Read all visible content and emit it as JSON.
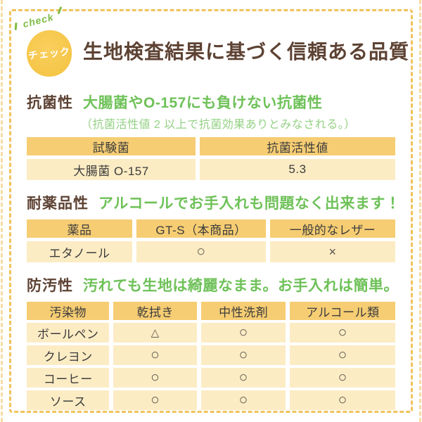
{
  "header": {
    "badge": {
      "check_label": "check",
      "circle_label": "チェック"
    },
    "title": "生地検査結果に基づく信頼ある品質"
  },
  "sections": [
    {
      "label": "抗菌性",
      "headline": "大腸菌やO-157にも負けない抗菌性",
      "note": "（抗菌活性値 2 以上で抗菌効果ありとみなされる。）",
      "table": {
        "headers": [
          "試験菌",
          "抗菌活性値"
        ],
        "rows": [
          [
            "大腸菌 O-157",
            "5.3"
          ]
        ]
      }
    },
    {
      "label": "耐薬品性",
      "headline": "アルコールでお手入れも問題なく出来ます！",
      "table": {
        "headers": [
          "薬品",
          "GT-S（本商品）",
          "一般的なレザー"
        ],
        "rows": [
          [
            "エタノール",
            "○",
            "×"
          ]
        ]
      }
    },
    {
      "label": "防汚性",
      "headline": "汚れても生地は綺麗なまま。お手入れは簡単。",
      "table": {
        "headers": [
          "汚染物",
          "乾拭き",
          "中性洗剤",
          "アルコール類"
        ],
        "rows": [
          [
            "ボールペン",
            "△",
            "○",
            "○"
          ],
          [
            "クレヨン",
            "○",
            "○",
            "○"
          ],
          [
            "コーヒー",
            "○",
            "○",
            "○"
          ],
          [
            "ソース",
            "○",
            "○",
            "○"
          ]
        ]
      }
    }
  ],
  "colors": {
    "border_dash": "#f0c35c",
    "badge_circle": "#f6c648",
    "badge_text": "#ffffff",
    "check_green": "#7fbc45",
    "title_brown": "#5d4233",
    "headline_green": "#6ec158",
    "note_green": "#93d184",
    "table_header_bg": "#f6cd73",
    "table_cell_bg": "#fcecc4",
    "cell_text": "#3c3c3c"
  }
}
